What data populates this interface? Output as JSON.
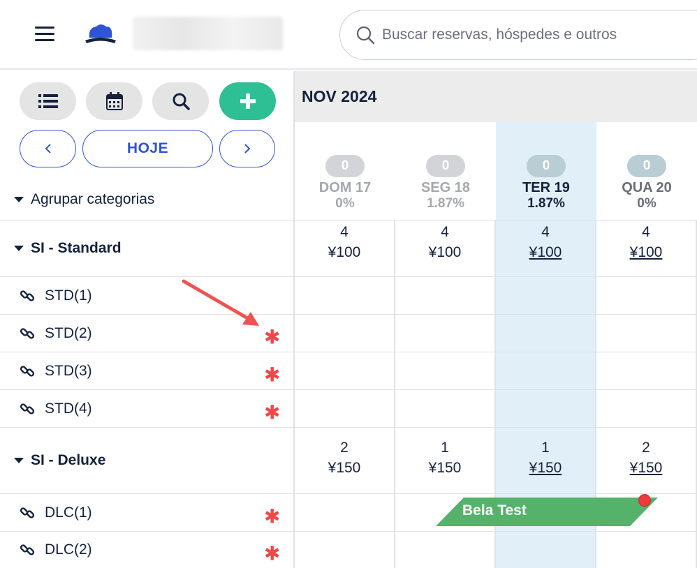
{
  "header": {
    "search_placeholder": "Buscar reservas, hóspedes e outros"
  },
  "toolbar": {
    "today_label": "HOJE"
  },
  "group_toggle_label": "Agrupar categorias",
  "calendar": {
    "month_label": "NOV 2024",
    "days": [
      {
        "occupancy": "0",
        "name": "DOM 17",
        "pct": "0%"
      },
      {
        "occupancy": "0",
        "name": "SEG 18",
        "pct": "1.87%"
      },
      {
        "occupancy": "0",
        "name": "TER 19",
        "pct": "1.87%"
      },
      {
        "occupancy": "0",
        "name": "QUA 20",
        "pct": "0%"
      }
    ]
  },
  "categories": [
    {
      "name": "SI - Standard",
      "cells": [
        {
          "avail": "4",
          "price": "¥100"
        },
        {
          "avail": "4",
          "price": "¥100"
        },
        {
          "avail": "4",
          "price": "¥100"
        },
        {
          "avail": "4",
          "price": "¥100"
        }
      ],
      "rooms": [
        "STD(1)",
        "STD(2)",
        "STD(3)",
        "STD(4)"
      ]
    },
    {
      "name": "SI - Deluxe",
      "cells": [
        {
          "avail": "2",
          "price": "¥150"
        },
        {
          "avail": "1",
          "price": "¥150"
        },
        {
          "avail": "1",
          "price": "¥150"
        },
        {
          "avail": "2",
          "price": "¥150"
        }
      ],
      "rooms": [
        "DLC(1)",
        "DLC(2)"
      ]
    }
  ],
  "booking": {
    "guest_name": "Bela Test",
    "color": "#55b26a"
  },
  "asterisk_symbol": "✱",
  "colors": {
    "accent": "#2f55d4",
    "add_button": "#2fbf94",
    "today_column": "#e1f0f8",
    "asterisk": "#f04848"
  }
}
